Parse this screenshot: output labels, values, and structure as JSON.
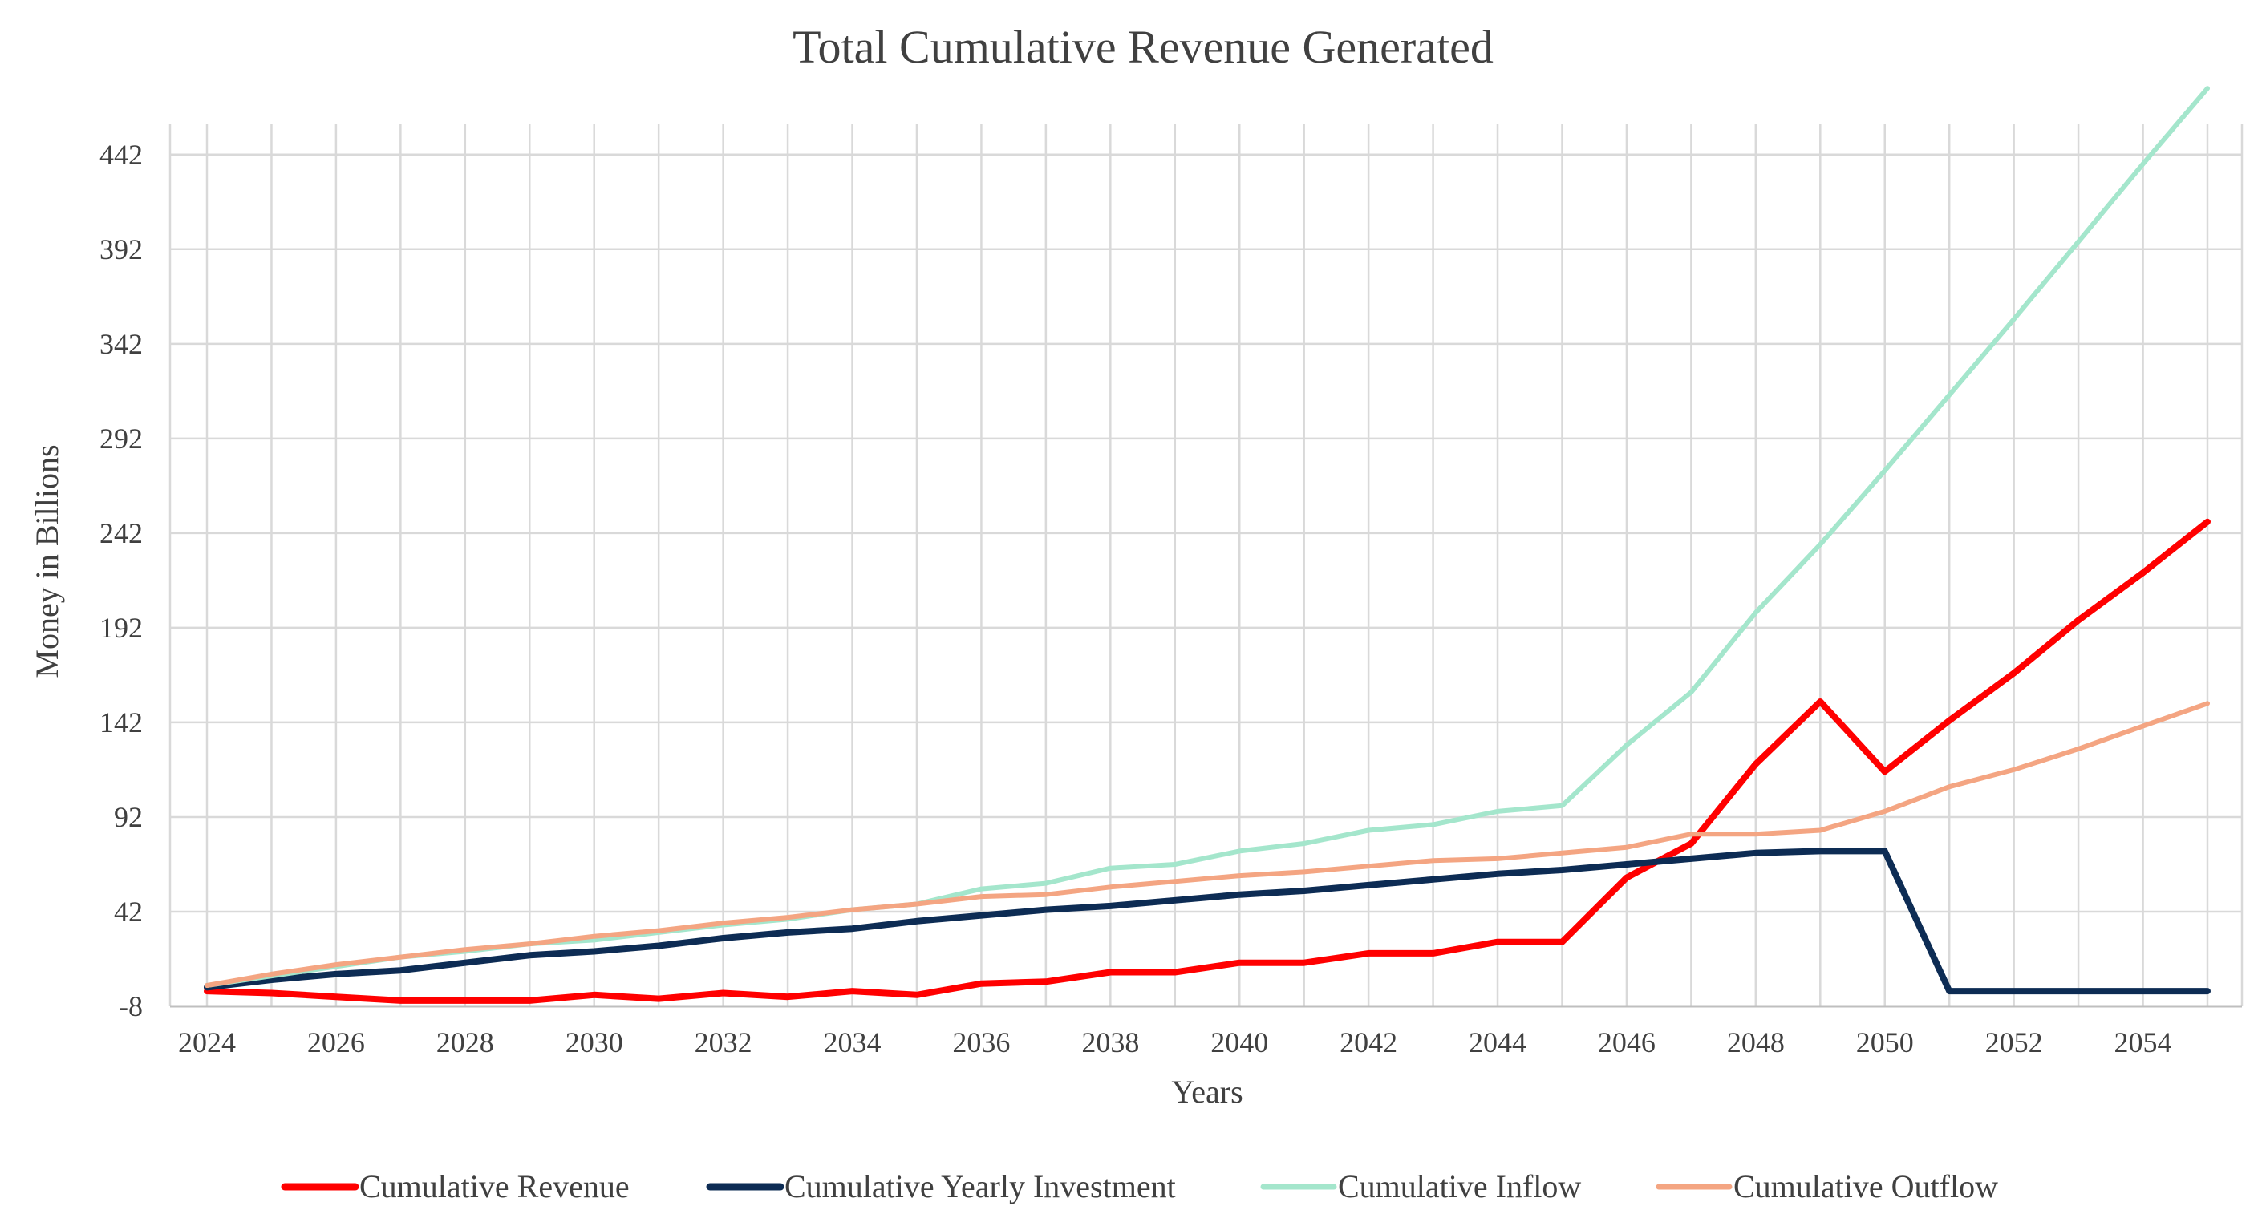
{
  "chart_data": {
    "type": "line",
    "title": "Total Cumulative Revenue Generated",
    "xlabel": "Years",
    "ylabel": "Money  in Billions",
    "x": [
      2024,
      2025,
      2026,
      2027,
      2028,
      2029,
      2030,
      2031,
      2032,
      2033,
      2034,
      2035,
      2036,
      2037,
      2038,
      2039,
      2040,
      2041,
      2042,
      2043,
      2044,
      2045,
      2046,
      2047,
      2048,
      2049,
      2050,
      2051,
      2052,
      2053,
      2054,
      2055
    ],
    "xlim": [
      2024,
      2055
    ],
    "x_ticks": [
      2024,
      2026,
      2028,
      2030,
      2032,
      2034,
      2036,
      2038,
      2040,
      2042,
      2044,
      2046,
      2048,
      2050,
      2052,
      2054
    ],
    "ylim": [
      -8,
      458
    ],
    "y_ticks": [
      -8,
      42,
      92,
      142,
      192,
      242,
      292,
      342,
      392,
      442
    ],
    "grid": true,
    "legend_position": "bottom",
    "series": [
      {
        "name": "Cumulative Revenue",
        "color": "#ff0000",
        "width": 8,
        "values": [
          0,
          -1,
          -3,
          -5,
          -5,
          -5,
          -2,
          -4,
          -1,
          -3,
          0,
          -2,
          4,
          5,
          10,
          10,
          15,
          15,
          20,
          20,
          26,
          26,
          60,
          78,
          120,
          153,
          116,
          143,
          168,
          196,
          221,
          248
        ]
      },
      {
        "name": "Cumulative Yearly Investment",
        "color": "#0d2c54",
        "width": 8,
        "values": [
          2,
          6,
          9,
          11,
          15,
          19,
          21,
          24,
          28,
          31,
          33,
          37,
          40,
          43,
          45,
          48,
          51,
          53,
          56,
          59,
          62,
          64,
          67,
          70,
          73,
          74,
          74,
          0,
          0,
          0,
          0,
          0
        ]
      },
      {
        "name": "Cumulative Inflow",
        "color": "#a4e6cc",
        "width": 6,
        "values": [
          3,
          8,
          13,
          18,
          21,
          25,
          27,
          31,
          35,
          38,
          43,
          46,
          54,
          57,
          65,
          67,
          74,
          78,
          85,
          88,
          95,
          98,
          130,
          158,
          200,
          236,
          275,
          315,
          355,
          396,
          437,
          477
        ]
      },
      {
        "name": "Cumulative Outflow",
        "color": "#f4a582",
        "width": 6,
        "values": [
          3,
          9,
          14,
          18,
          22,
          25,
          29,
          32,
          36,
          39,
          43,
          46,
          50,
          51,
          55,
          58,
          61,
          63,
          66,
          69,
          70,
          73,
          76,
          83,
          83,
          85,
          95,
          108,
          117,
          128,
          140,
          152
        ]
      }
    ]
  }
}
